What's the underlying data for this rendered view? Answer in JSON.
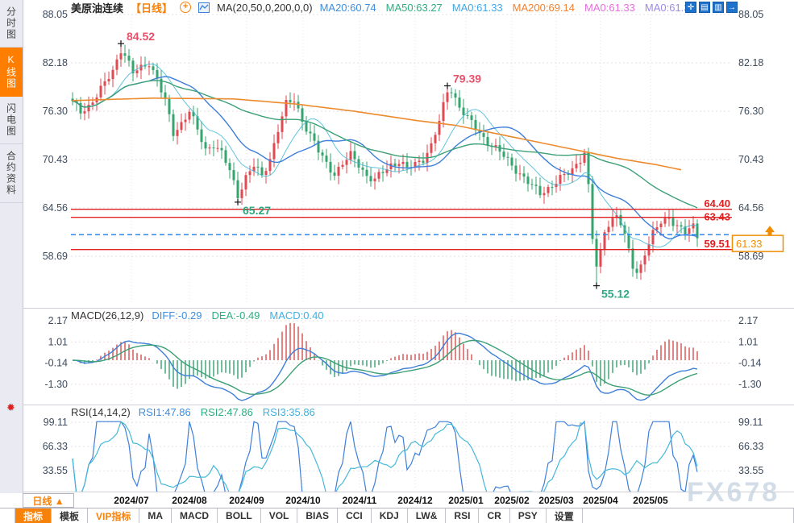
{
  "header": {
    "title": "美原油连续",
    "period_tag": "【日线】",
    "ma_formula": "MA(20,50,0,200,0,0)",
    "ma_values": [
      {
        "label": "MA20:60.74",
        "color": "#3e8ede"
      },
      {
        "label": "MA50:63.27",
        "color": "#2fae7f"
      },
      {
        "label": "MA0:61.33",
        "color": "#3fa8e8"
      },
      {
        "label": "MA200:69.14",
        "color": "#f0812e"
      },
      {
        "label": "MA0:61.33",
        "color": "#e86ee0"
      },
      {
        "label": "MA0:61.3",
        "color": "#9d8ae8"
      }
    ],
    "window_icons": [
      "pan-icon",
      "scale-x-icon",
      "scale-y-icon",
      "shift-right-icon"
    ]
  },
  "sidebar": {
    "tabs": [
      {
        "label": "分时图",
        "active": false
      },
      {
        "label": "K线图",
        "active": true
      },
      {
        "label": "闪电图",
        "active": false
      },
      {
        "label": "合约资料",
        "active": false
      }
    ]
  },
  "macd_panel": {
    "title": "MACD(26,12,9)",
    "values": [
      {
        "label": "DIFF:-0.29",
        "color": "#3e8ede"
      },
      {
        "label": "DEA:-0.49",
        "color": "#2fae7f"
      },
      {
        "label": "MACD:0.40",
        "color": "#3fb0e0"
      }
    ],
    "y_ticks": [
      "2.17",
      "1.01",
      "-0.14",
      "-1.30"
    ]
  },
  "rsi_panel": {
    "title": "RSI(14,14,2)",
    "values": [
      {
        "label": "RSI1:47.86",
        "color": "#3e8ede"
      },
      {
        "label": "RSI2:47.86",
        "color": "#2fae7f"
      },
      {
        "label": "RSI3:35.86",
        "color": "#3fb0e0"
      }
    ],
    "y_ticks": [
      "99.11",
      "66.33",
      "33.55"
    ]
  },
  "bottom": {
    "period_button": "日线 ▲",
    "toolbar": [
      {
        "label": "指标",
        "style": "active"
      },
      {
        "label": "模板",
        "style": ""
      },
      {
        "label": "VIP指标",
        "style": "vip"
      },
      {
        "label": "MA",
        "style": ""
      },
      {
        "label": "MACD",
        "style": ""
      },
      {
        "label": "BOLL",
        "style": ""
      },
      {
        "label": "VOL",
        "style": ""
      },
      {
        "label": "BIAS",
        "style": ""
      },
      {
        "label": "CCI",
        "style": ""
      },
      {
        "label": "KDJ",
        "style": ""
      },
      {
        "label": "LW&",
        "style": ""
      },
      {
        "label": "RSI",
        "style": ""
      },
      {
        "label": "CR",
        "style": ""
      },
      {
        "label": "PSY",
        "style": ""
      },
      {
        "label": "设置",
        "style": ""
      }
    ]
  },
  "watermark": "FX678",
  "colors": {
    "candle_up": "#e04a52",
    "candle_down": "#35a46e",
    "ma20": "#3e7fd9",
    "ma50": "#3ca076",
    "ma10": "#45b8d8",
    "ma200": "#ee8a2e",
    "level_line": "#e02020",
    "current_line": "#2e86e8",
    "price_box": "#f08c00",
    "hist_up": "#d85a5a",
    "hist_down": "#44a878",
    "annot_high": "#e8506a",
    "annot_low": "#2fa883",
    "axis_text": "#3c4a5c"
  },
  "chart_data": {
    "type": "candlestick",
    "title": "美原油连续 日线 (WTI crude continuous, daily)",
    "x_labels": [
      "2024/07",
      "2024/08",
      "2024/09",
      "2024/10",
      "2024/11",
      "2024/12",
      "2025/01",
      "2025/02",
      "2025/03",
      "2025/04",
      "2025/05"
    ],
    "main": {
      "y_ticks": [
        88.05,
        82.18,
        76.3,
        70.43,
        64.56,
        58.69
      ],
      "ylim": [
        53.0,
        88.05
      ],
      "close_anchors": [
        [
          0,
          77.3
        ],
        [
          2,
          76.2
        ],
        [
          4,
          77.0
        ],
        [
          6,
          78.3
        ],
        [
          8,
          79.6
        ],
        [
          10,
          81.2
        ],
        [
          12,
          83.9
        ],
        [
          13,
          83.2
        ],
        [
          15,
          80.9
        ],
        [
          17,
          81.5
        ],
        [
          19,
          82.3
        ],
        [
          21,
          80.2
        ],
        [
          23,
          77.4
        ],
        [
          25,
          73.6
        ],
        [
          27,
          74.9
        ],
        [
          29,
          76.4
        ],
        [
          31,
          73.9
        ],
        [
          33,
          71.6
        ],
        [
          35,
          72.4
        ],
        [
          37,
          71.2
        ],
        [
          39,
          69.0
        ],
        [
          41,
          66.1
        ],
        [
          43,
          68.4
        ],
        [
          45,
          69.7
        ],
        [
          47,
          68.3
        ],
        [
          49,
          70.6
        ],
        [
          51,
          74.2
        ],
        [
          53,
          77.1
        ],
        [
          55,
          77.6
        ],
        [
          57,
          75.3
        ],
        [
          59,
          73.4
        ],
        [
          61,
          71.4
        ],
        [
          63,
          69.9
        ],
        [
          65,
          68.8
        ],
        [
          67,
          69.9
        ],
        [
          69,
          70.9
        ],
        [
          71,
          69.9
        ],
        [
          73,
          68.5
        ],
        [
          75,
          67.9
        ],
        [
          77,
          68.9
        ],
        [
          79,
          69.8
        ],
        [
          81,
          70.3
        ],
        [
          83,
          69.3
        ],
        [
          85,
          69.8
        ],
        [
          87,
          70.6
        ],
        [
          89,
          72.2
        ],
        [
          91,
          75.0
        ],
        [
          93,
          78.7
        ],
        [
          94,
          78.9
        ],
        [
          96,
          76.9
        ],
        [
          98,
          75.4
        ],
        [
          100,
          74.2
        ],
        [
          102,
          73.1
        ],
        [
          104,
          72.2
        ],
        [
          106,
          71.3
        ],
        [
          108,
          70.3
        ],
        [
          110,
          69.3
        ],
        [
          112,
          68.2
        ],
        [
          114,
          67.1
        ],
        [
          116,
          66.4
        ],
        [
          118,
          67.0
        ],
        [
          120,
          67.7
        ],
        [
          122,
          68.4
        ],
        [
          124,
          69.3
        ],
        [
          126,
          70.6
        ],
        [
          127,
          71.3
        ],
        [
          128,
          67.0
        ],
        [
          129,
          60.8
        ],
        [
          130,
          57.4
        ],
        [
          131,
          59.2
        ],
        [
          132,
          61.9
        ],
        [
          133,
          62.8
        ],
        [
          135,
          63.6
        ],
        [
          136,
          62.6
        ],
        [
          137,
          61.0
        ],
        [
          139,
          57.6
        ],
        [
          140,
          56.9
        ],
        [
          141,
          57.6
        ],
        [
          142,
          59.1
        ],
        [
          144,
          61.3
        ],
        [
          146,
          62.9
        ],
        [
          148,
          63.5
        ],
        [
          150,
          62.3
        ],
        [
          152,
          61.5
        ],
        [
          154,
          62.4
        ],
        [
          155,
          61.33
        ]
      ],
      "ma200_anchors": [
        [
          0,
          77.6
        ],
        [
          20,
          77.9
        ],
        [
          40,
          77.8
        ],
        [
          55,
          77.2
        ],
        [
          70,
          76.3
        ],
        [
          85,
          75.2
        ],
        [
          95,
          74.6
        ],
        [
          105,
          73.6
        ],
        [
          115,
          72.6
        ],
        [
          125,
          71.6
        ],
        [
          135,
          70.6
        ],
        [
          145,
          69.8
        ],
        [
          151,
          69.2
        ]
      ],
      "markers": [
        {
          "index": 12,
          "side": "high",
          "price": 84.52,
          "label": "84.52"
        },
        {
          "index": 93,
          "side": "high",
          "price": 79.39,
          "label": "79.39"
        },
        {
          "index": 41,
          "side": "low",
          "price": 65.27,
          "label": "65.27"
        },
        {
          "index": 130,
          "side": "low",
          "price": 55.12,
          "label": "55.12"
        }
      ],
      "levels": [
        {
          "price": 64.4,
          "label": "64.40",
          "label_pos": "above"
        },
        {
          "price": 63.43,
          "label": "63.43",
          "label_pos": "middle"
        },
        {
          "price": 59.51,
          "label": "59.51",
          "label_pos": "above"
        }
      ],
      "current_price": {
        "value": 61.33,
        "label": "61.33"
      }
    },
    "macd": {
      "params": "26,12,9",
      "diff": -0.29,
      "dea": -0.49,
      "macd": 0.4,
      "y_ticks": [
        2.17,
        1.01,
        -0.14,
        -1.3
      ]
    },
    "rsi": {
      "params": "14,14,2",
      "rsi1": 47.86,
      "rsi2": 47.86,
      "rsi3": 35.86,
      "y_ticks": [
        99.11,
        66.33,
        33.55
      ]
    }
  }
}
